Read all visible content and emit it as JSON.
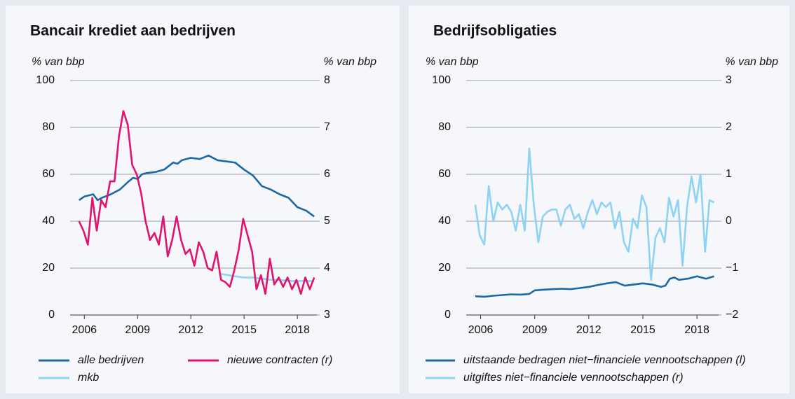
{
  "chart_data": [
    {
      "type": "line",
      "title": "Bancair krediet aan bedrijven",
      "ylabel": "% van bbp",
      "y2label": "% van bbp",
      "xlim": [
        2005.2,
        2019.1
      ],
      "xticks": [
        2006,
        2009,
        2012,
        2015,
        2018
      ],
      "ylim": [
        0,
        100
      ],
      "yticks": [
        0,
        20,
        40,
        60,
        80,
        100
      ],
      "y2lim": [
        3,
        8
      ],
      "y2ticks": [
        3,
        4,
        5,
        6,
        7,
        8
      ],
      "grid": true,
      "series": [
        {
          "name": "alle bedrijven",
          "color": "#1a69a6",
          "x": [
            2005.7,
            2006,
            2006.5,
            2006.75,
            2007,
            2007.5,
            2008,
            2008.5,
            2008.75,
            2009,
            2009.25,
            2009.5,
            2010,
            2010.5,
            2011,
            2011.25,
            2011.5,
            2012,
            2012.5,
            2013,
            2013.5,
            2014,
            2014.5,
            2015,
            2015.5,
            2016,
            2016.5,
            2017,
            2017.5,
            2018,
            2018.5,
            2018.95
          ],
          "values": [
            49,
            50.5,
            51.5,
            49,
            50,
            51.5,
            53.5,
            57,
            58.5,
            58,
            60,
            60.5,
            61,
            62,
            65,
            64.5,
            66,
            67,
            66.5,
            68,
            66,
            65.5,
            65,
            62,
            59.5,
            55,
            53.5,
            51.5,
            50,
            46,
            44.5,
            42
          ]
        },
        {
          "name": "mkb",
          "color": "#8ed2f4",
          "x": [
            2013.7,
            2014.5,
            2015,
            2015.5,
            2016,
            2016.5,
            2017,
            2017.5,
            2018,
            2018.5,
            2018.95
          ],
          "values": [
            17.5,
            16.5,
            16,
            16,
            15.5,
            15,
            15,
            14.5,
            14.5,
            14.5,
            14.5
          ]
        },
        {
          "name": "nieuwe contracten (r)",
          "color": "#e0146f",
          "axis": "y2",
          "x": [
            2005.7,
            2005.95,
            2006.2,
            2006.45,
            2006.7,
            2006.95,
            2007.2,
            2007.45,
            2007.7,
            2007.95,
            2008.2,
            2008.45,
            2008.7,
            2008.95,
            2009.2,
            2009.45,
            2009.7,
            2009.95,
            2010.2,
            2010.45,
            2010.7,
            2010.95,
            2011.2,
            2011.45,
            2011.7,
            2011.95,
            2012.2,
            2012.45,
            2012.7,
            2012.95,
            2013.2,
            2013.45,
            2013.7,
            2013.95,
            2014.2,
            2014.45,
            2014.7,
            2014.95,
            2015.2,
            2015.45,
            2015.7,
            2015.95,
            2016.2,
            2016.45,
            2016.7,
            2016.95,
            2017.2,
            2017.45,
            2017.7,
            2017.95,
            2018.2,
            2018.45,
            2018.7,
            2018.95
          ],
          "values": [
            5.0,
            4.8,
            4.5,
            5.5,
            4.8,
            5.45,
            5.3,
            5.85,
            5.85,
            6.8,
            7.35,
            7.05,
            6.2,
            6.0,
            5.6,
            5.0,
            4.6,
            4.75,
            4.5,
            5.1,
            4.25,
            4.6,
            5.1,
            4.6,
            4.3,
            4.4,
            4.05,
            4.55,
            4.35,
            4.0,
            3.95,
            4.35,
            3.75,
            3.7,
            3.6,
            3.95,
            4.4,
            5.05,
            4.7,
            4.35,
            3.55,
            3.85,
            3.45,
            4.2,
            3.65,
            3.8,
            3.6,
            3.8,
            3.55,
            3.75,
            3.45,
            3.8,
            3.55,
            3.8
          ]
        }
      ]
    },
    {
      "type": "line",
      "title": "Bedrijfsobligaties",
      "ylabel": "% van bbp",
      "y2label": "% van bbp",
      "xlim": [
        2005.2,
        2019.2
      ],
      "xticks": [
        2006,
        2009,
        2012,
        2015,
        2018
      ],
      "ylim": [
        0,
        100
      ],
      "yticks": [
        0,
        20,
        40,
        60,
        80,
        100
      ],
      "y2lim": [
        -2,
        3
      ],
      "y2ticks": [
        {
          "value": -2,
          "label": "−2"
        },
        {
          "value": -1,
          "label": "−1"
        },
        0,
        1,
        2,
        3
      ],
      "grid": true,
      "series": [
        {
          "name": "uitstaande bedragen niet−financiele vennootschappen (l)",
          "color": "#1a69a6",
          "x": [
            2005.7,
            2006.2,
            2006.7,
            2007.2,
            2007.7,
            2008.2,
            2008.7,
            2009,
            2009.5,
            2010,
            2010.5,
            2011,
            2011.5,
            2012,
            2012.5,
            2013,
            2013.5,
            2014,
            2014.5,
            2015,
            2015.5,
            2016,
            2016.25,
            2016.5,
            2016.75,
            2017,
            2017.5,
            2018,
            2018.5,
            2018.95
          ],
          "values": [
            8,
            7.8,
            8.2,
            8.5,
            8.8,
            8.7,
            9,
            10.5,
            10.8,
            11,
            11.2,
            11,
            11.5,
            12,
            12.8,
            13.5,
            14,
            12.5,
            13,
            13.5,
            13,
            12,
            12.5,
            15.5,
            16,
            15,
            15.5,
            16.5,
            15.5,
            16.5
          ]
        },
        {
          "name": "uitgiftes niet−financiele vennootschappen (r)",
          "color": "#8ed2f4",
          "axis": "y2",
          "x": [
            2005.7,
            2005.95,
            2006.2,
            2006.45,
            2006.7,
            2006.95,
            2007.2,
            2007.45,
            2007.7,
            2007.95,
            2008.2,
            2008.45,
            2008.7,
            2008.95,
            2009.2,
            2009.45,
            2009.7,
            2009.95,
            2010.2,
            2010.45,
            2010.7,
            2010.95,
            2011.2,
            2011.45,
            2011.7,
            2011.95,
            2012.2,
            2012.45,
            2012.7,
            2012.95,
            2013.2,
            2013.45,
            2013.7,
            2013.95,
            2014.2,
            2014.45,
            2014.7,
            2014.95,
            2015.2,
            2015.45,
            2015.7,
            2015.95,
            2016.2,
            2016.45,
            2016.7,
            2016.95,
            2017.2,
            2017.45,
            2017.7,
            2017.95,
            2018.2,
            2018.45,
            2018.7,
            2018.95
          ],
          "values": [
            0.35,
            -0.3,
            -0.5,
            0.75,
            0.0,
            0.4,
            0.25,
            0.35,
            0.2,
            -0.2,
            0.35,
            -0.2,
            1.55,
            0.35,
            -0.45,
            0.1,
            0.2,
            0.25,
            0.25,
            -0.1,
            0.25,
            0.35,
            0.05,
            0.15,
            -0.15,
            0.2,
            0.45,
            0.15,
            0.4,
            0.3,
            0.4,
            -0.15,
            0.2,
            -0.45,
            -0.65,
            0.05,
            -0.15,
            0.55,
            0.3,
            -1.25,
            -0.35,
            -0.15,
            -0.45,
            0.5,
            0.1,
            0.45,
            -0.95,
            0.3,
            0.95,
            0.4,
            1.0,
            -0.65,
            0.45,
            0.4
          ]
        }
      ]
    }
  ]
}
